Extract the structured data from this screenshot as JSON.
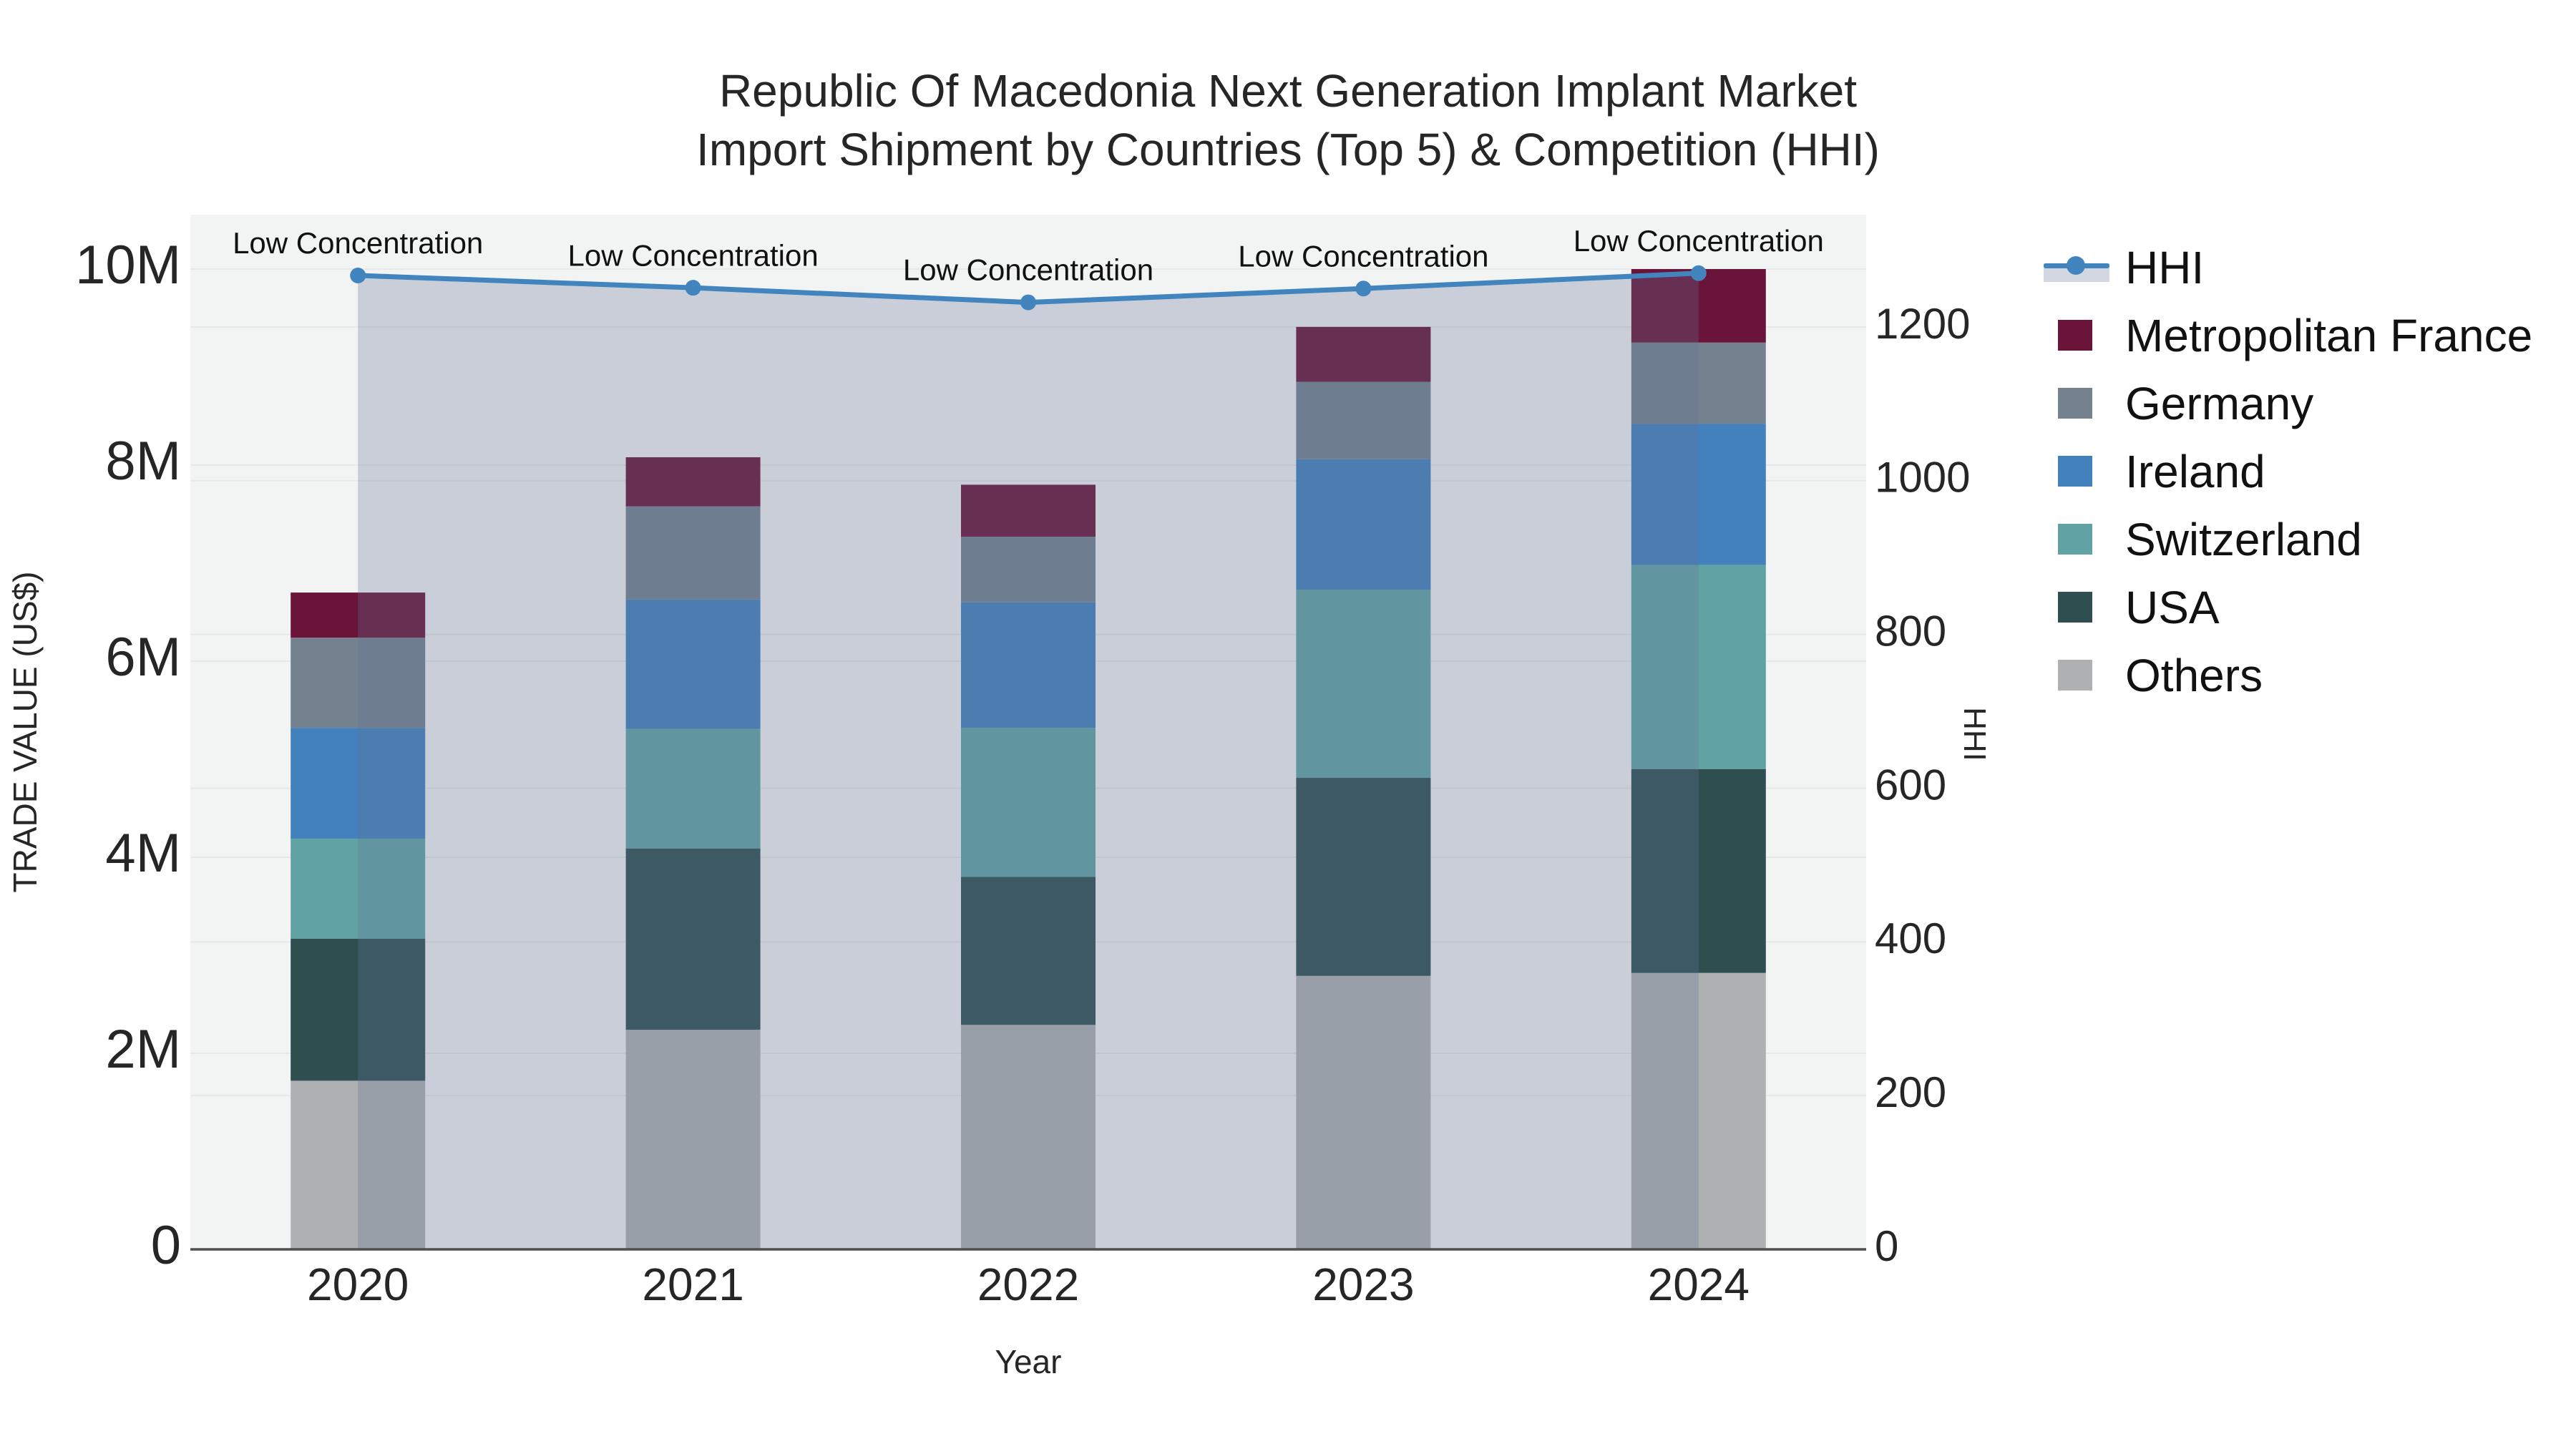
{
  "title": {
    "line1": "Republic Of Macedonia Next Generation Implant Market",
    "line2": "Import Shipment by Countries (Top 5) & Competition (HHI)"
  },
  "axes": {
    "x": {
      "title": "Year",
      "tick_labels": [
        "2020",
        "2021",
        "2022",
        "2023",
        "2024"
      ]
    },
    "y_left": {
      "title": "TRADE VALUE (US$)",
      "tick_labels": [
        "0",
        "2M",
        "4M",
        "6M",
        "8M",
        "10M"
      ],
      "tick_values_musd": [
        0,
        2,
        4,
        6,
        8,
        10
      ]
    },
    "y_right": {
      "title": "HHI",
      "tick_labels": [
        "0",
        "200",
        "400",
        "600",
        "800",
        "1000",
        "1200"
      ],
      "tick_values": [
        0,
        200,
        400,
        600,
        800,
        1000,
        1200
      ]
    }
  },
  "legend": {
    "items": [
      {
        "label": "HHI",
        "type": "line",
        "color": "#4285BE"
      },
      {
        "label": "Metropolitan France",
        "type": "square",
        "color": "#691438"
      },
      {
        "label": "Germany",
        "type": "square",
        "color": "#74818F"
      },
      {
        "label": "Ireland",
        "type": "square",
        "color": "#4281BB"
      },
      {
        "label": "Switzerland",
        "type": "square",
        "color": "#61A3A4"
      },
      {
        "label": "USA",
        "type": "square",
        "color": "#2E4E50"
      },
      {
        "label": "Others",
        "type": "square",
        "color": "#AEB0B1"
      }
    ]
  },
  "chart_data": {
    "type": "bar+line",
    "title": "Republic Of Macedonia Next Generation Implant Market Import Shipment by Countries (Top 5) & Competition (HHI)",
    "categories": [
      "2020",
      "2021",
      "2022",
      "2023",
      "2024"
    ],
    "xlabel": "Year",
    "ylabel_left": "TRADE VALUE (US$)",
    "ylabel_right": "HHI",
    "ylim_left_musd": [
      0,
      10.55
    ],
    "ylim_right": [
      0,
      1346
    ],
    "grid": true,
    "legend_position": "right",
    "bar_stack_order_bottom_to_top": [
      "Others",
      "USA",
      "Switzerland",
      "Ireland",
      "Germany",
      "Metropolitan France"
    ],
    "series": [
      {
        "name": "Metropolitan France",
        "color": "#691438",
        "values_millions_usd": [
          0.46,
          0.5,
          0.53,
          0.56,
          0.75
        ]
      },
      {
        "name": "Germany",
        "color": "#74818F",
        "values_millions_usd": [
          0.92,
          0.95,
          0.67,
          0.79,
          0.83
        ]
      },
      {
        "name": "Ireland",
        "color": "#4281BB",
        "values_millions_usd": [
          1.13,
          1.32,
          1.28,
          1.33,
          1.44
        ]
      },
      {
        "name": "Switzerland",
        "color": "#61A3A4",
        "values_millions_usd": [
          1.02,
          1.22,
          1.52,
          1.92,
          2.08
        ]
      },
      {
        "name": "USA",
        "color": "#2E4E50",
        "values_millions_usd": [
          1.45,
          1.85,
          1.51,
          2.02,
          2.08
        ]
      },
      {
        "name": "Others",
        "color": "#AEB0B1",
        "values_millions_usd": [
          1.72,
          2.24,
          2.29,
          2.79,
          2.82
        ]
      }
    ],
    "stack_totals_millions_usd": [
      6.7,
      8.08,
      7.8,
      9.41,
      10.0
    ],
    "hhi_line": {
      "name": "HHI",
      "color": "#4285BE",
      "area_fill": "rgba(100,118,150,0.29)",
      "values": [
        1267,
        1251,
        1232,
        1250,
        1270
      ],
      "point_annotations": [
        "Low Concentration",
        "Low Concentration",
        "Low Concentration",
        "Low Concentration",
        "Low Concentration"
      ]
    },
    "colors": {
      "plot_background": "#F2F3F3",
      "gridline": "#E6E8E9",
      "axis_line": "#4F4F4F",
      "text": "#262626"
    }
  }
}
